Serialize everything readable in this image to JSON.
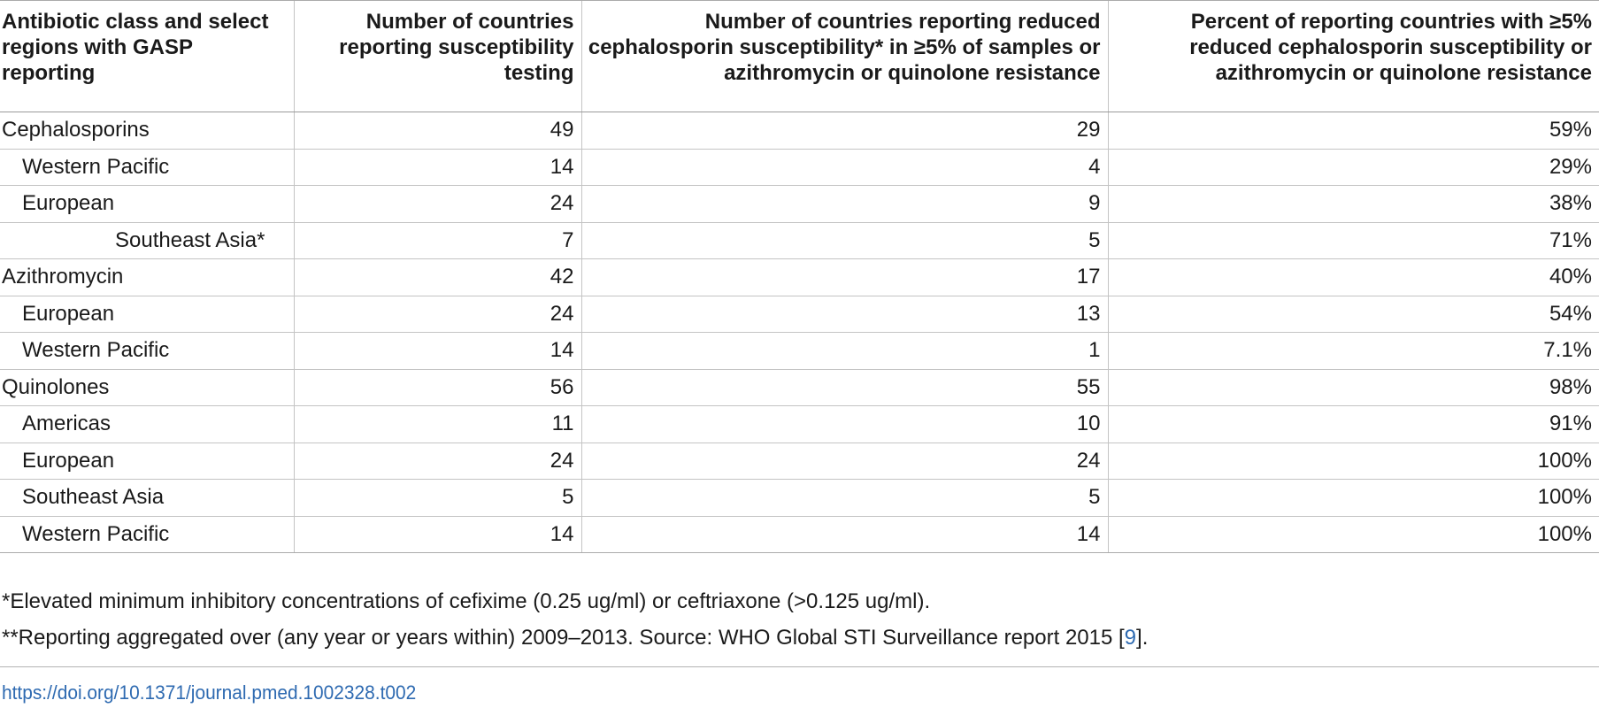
{
  "table": {
    "headers": [
      "Antibiotic class and select regions with GASP reporting",
      "Number of countries reporting susceptibility testing",
      "Number of countries reporting reduced cephalosporin susceptibility* in ≥5% of samples or azithromycin or quinolone resistance",
      "Percent of reporting countries with ≥5% reduced cephalosporin susceptibility or azithromycin or quinolone resistance"
    ],
    "rows": [
      {
        "label": "Cephalosporins",
        "reporting": "49",
        "reduced": "29",
        "percent": "59%"
      },
      {
        "label": "Western Pacific",
        "reporting": "14",
        "reduced": "4",
        "percent": "29%"
      },
      {
        "label": "European",
        "reporting": "24",
        "reduced": "9",
        "percent": "38%"
      },
      {
        "label": "Southeast Asia*",
        "reporting": "7",
        "reduced": "5",
        "percent": "71%"
      },
      {
        "label": "Azithromycin",
        "reporting": "42",
        "reduced": "17",
        "percent": "40%"
      },
      {
        "label": "European",
        "reporting": "24",
        "reduced": "13",
        "percent": "54%"
      },
      {
        "label": "Western Pacific",
        "reporting": "14",
        "reduced": "1",
        "percent": "7.1%"
      },
      {
        "label": "Quinolones",
        "reporting": "56",
        "reduced": "55",
        "percent": "98%"
      },
      {
        "label": "Americas",
        "reporting": "11",
        "reduced": "10",
        "percent": "91%"
      },
      {
        "label": "European",
        "reporting": "24",
        "reduced": "24",
        "percent": "100%"
      },
      {
        "label": "Southeast Asia",
        "reporting": "5",
        "reduced": "5",
        "percent": "100%"
      },
      {
        "label": "Western Pacific",
        "reporting": "14",
        "reduced": "14",
        "percent": "100%"
      }
    ]
  },
  "footnotes": {
    "note1": "*Elevated minimum inhibitory concentrations of cefixime (0.25 ug/ml) or ceftriaxone (>0.125 ug/ml).",
    "note2_text": "**Reporting aggregated over (any year or years within) 2009–2013. Source: WHO Global STI Surveillance report 2015 [",
    "note2_ref": "9",
    "note2_end": "]."
  },
  "doi": "https://doi.org/10.1371/journal.pmed.1002328.t002",
  "colors": {
    "link": "#2e6ab1",
    "text": "#1a1a1a",
    "rule": "#c4c4c4"
  }
}
